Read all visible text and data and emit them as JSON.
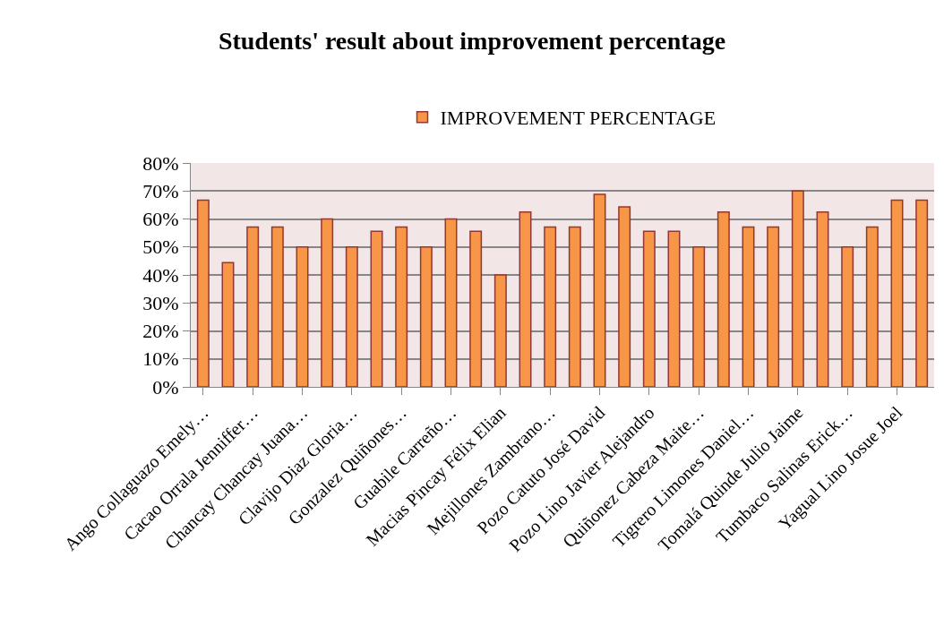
{
  "chart_data": {
    "type": "bar",
    "title": "Students' result about improvement percentage",
    "categories": [
      "Ango Collaguazo Emely…",
      null,
      "Cacao Orrala Jenniffer…",
      null,
      "Chancay Chancay Juana…",
      null,
      "Clavijo Diaz Gloria…",
      null,
      "Gonzalez Quiñones…",
      null,
      "Guabile Carreño…",
      null,
      "Macias Pincay Félix Elian",
      null,
      "Mejillones Zambrano…",
      null,
      "Pozo Catuto José David",
      null,
      "Pozo Lino Javier Alejandro",
      null,
      "Quiñonez Cabeza Maite…",
      null,
      "Tigrero Limones Daniel…",
      null,
      "Tomalá Quinde Julio Jaime",
      null,
      "Tumbaco Salinas Erick…",
      null,
      "Yagual Lino Josue Joel",
      null
    ],
    "series": [
      {
        "name": "IMPROVEMENT PERCENTAGE",
        "color": "#f79646",
        "values": [
          66.7,
          44.4,
          57.1,
          57.1,
          50,
          60,
          50,
          55.6,
          57.1,
          50,
          60,
          55.6,
          40,
          62.5,
          57.1,
          57.1,
          68.8,
          64.3,
          55.6,
          55.6,
          50,
          62.5,
          57.1,
          57.1,
          70,
          62.5,
          50,
          57.1,
          66.7,
          66.7
        ]
      }
    ],
    "ylim": [
      0,
      80
    ],
    "yticks": [
      {
        "value": 0,
        "label": "0%"
      },
      {
        "value": 10,
        "label": "10%"
      },
      {
        "value": 20,
        "label": "20%"
      },
      {
        "value": 30,
        "label": "30%"
      },
      {
        "value": 40,
        "label": "40%"
      },
      {
        "value": 50,
        "label": "50%"
      },
      {
        "value": 60,
        "label": "60%"
      },
      {
        "value": 70,
        "label": "70%"
      },
      {
        "value": 80,
        "label": "80%"
      }
    ],
    "grid": "y",
    "legend": "top"
  }
}
